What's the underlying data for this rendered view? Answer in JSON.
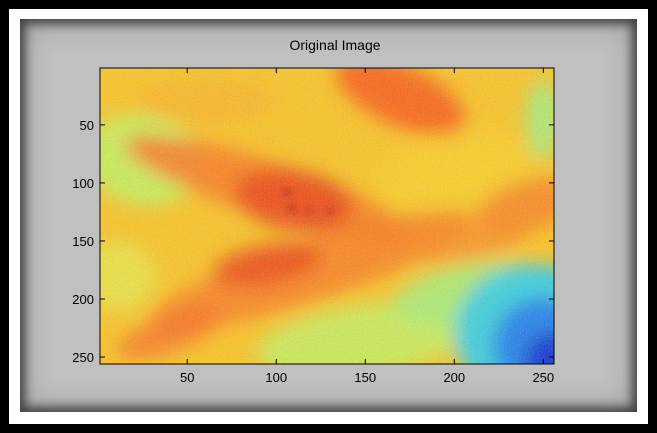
{
  "chart_data": {
    "type": "heatmap",
    "title": "Original Image",
    "xlabel": "",
    "ylabel": "",
    "image_size": [
      256,
      256
    ],
    "xlim": [
      1,
      256
    ],
    "ylim": [
      256,
      1
    ],
    "y_direction": "reversed",
    "xticks": [
      50,
      100,
      150,
      200,
      250
    ],
    "yticks": [
      50,
      100,
      150,
      200,
      250
    ],
    "colormap": "jet",
    "grid": false,
    "features": [
      {
        "type": "red-orange band",
        "from": [
          10,
          120
        ],
        "to": [
          180,
          100
        ]
      },
      {
        "type": "red-orange band",
        "from": [
          20,
          230
        ],
        "to": [
          210,
          150
        ]
      },
      {
        "type": "red patch",
        "at": [
          165,
          25
        ]
      },
      {
        "type": "dark spots",
        "at": [
          110,
          110
        ]
      },
      {
        "type": "blue-cyan region",
        "at": [
          235,
          215
        ]
      },
      {
        "type": "green patch",
        "at": [
          30,
          80
        ]
      },
      {
        "type": "yellow-green region",
        "at": [
          160,
          240
        ]
      }
    ]
  },
  "colors": {
    "figure_background": "#c0c0c0",
    "frame": "#000000"
  }
}
